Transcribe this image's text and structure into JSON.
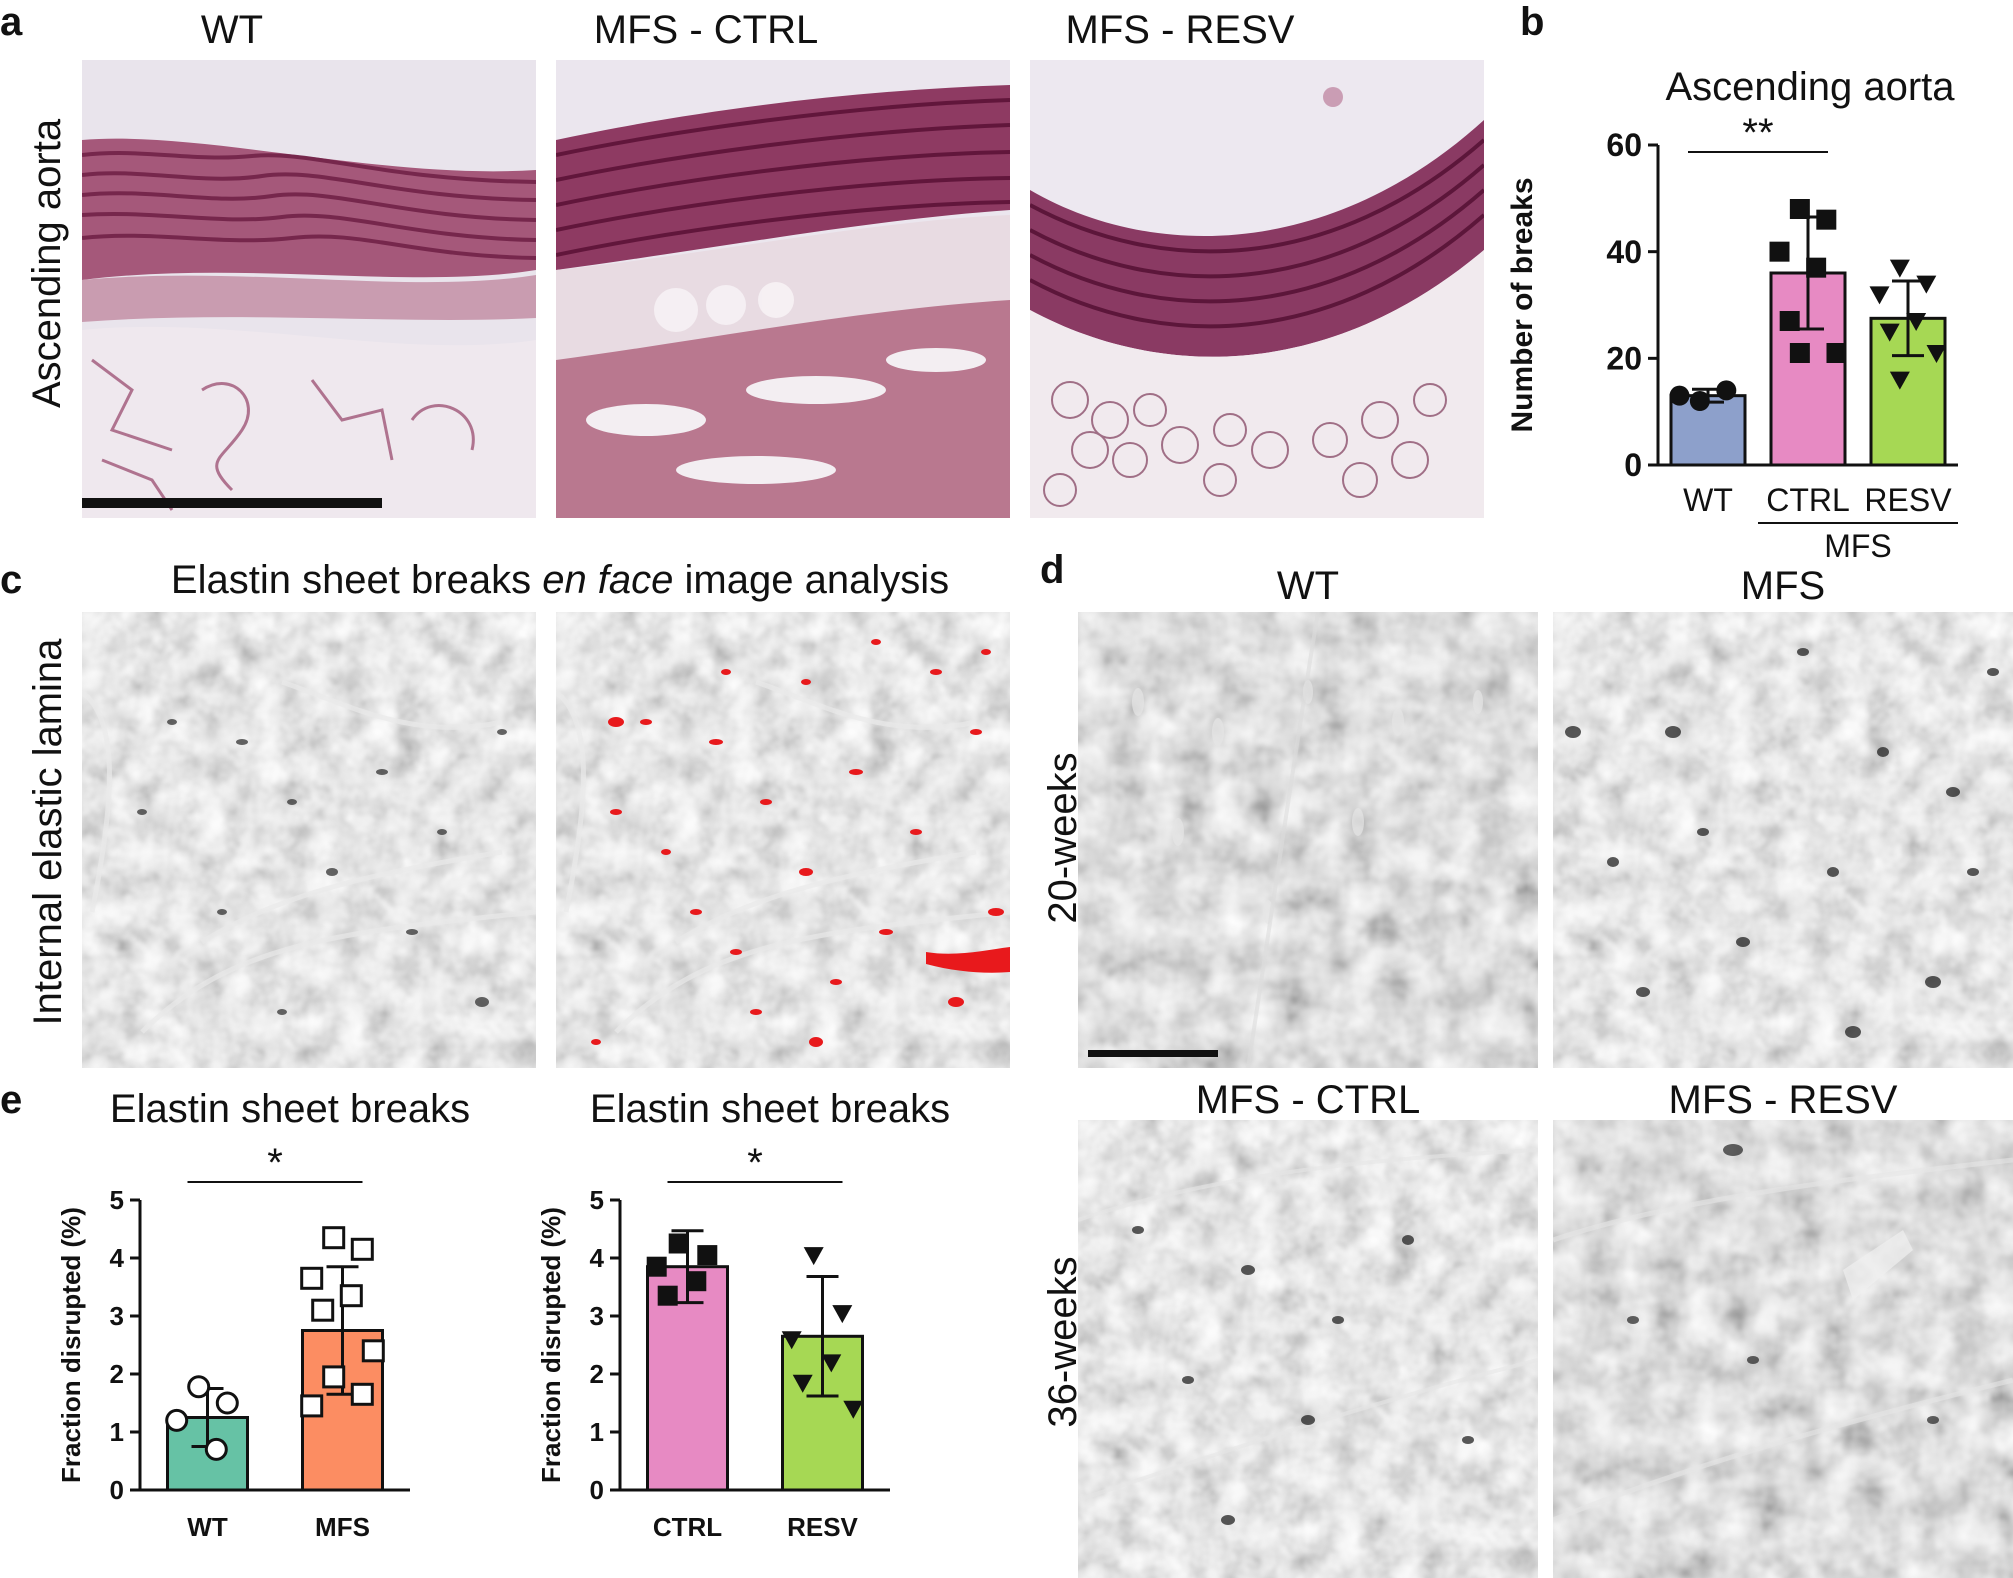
{
  "figure": {
    "panel_a": {
      "label": "a",
      "row_label": "Ascending aorta",
      "columns": [
        "WT",
        "MFS - CTRL",
        "MFS - RESV"
      ]
    },
    "panel_b": {
      "label": "b"
    },
    "panel_c": {
      "label": "c",
      "title_before": "Elastin sheet breaks ",
      "title_italic": "en face",
      "title_after": " image analysis",
      "row_label": "Internal elastic lamina"
    },
    "panel_d": {
      "label": "d",
      "columns_top": [
        "WT",
        "MFS"
      ],
      "columns_bottom": [
        "MFS - CTRL",
        "MFS - RESV"
      ],
      "row_labels": [
        "20-weeks",
        "36-weeks"
      ]
    },
    "panel_e": {
      "label": "e"
    }
  },
  "colors": {
    "wt_blue": "#8da0cb",
    "ctrl_pink": "#e78ac3",
    "resv_green": "#a6d854",
    "wt_teal": "#66c2a5",
    "mfs_orange": "#fc8d62",
    "overlay_red": "#e8191c",
    "stain_purple": "#7a2a52"
  },
  "chart_data": [
    {
      "id": "b",
      "type": "bar",
      "title": "Ascending aorta",
      "ylabel": "Number of breaks",
      "categories": [
        "WT",
        "CTRL",
        "RESV"
      ],
      "group_label": "MFS",
      "values": [
        13,
        36,
        27.5
      ],
      "errors": [
        1.2,
        10.5,
        7
      ],
      "ylim": [
        0,
        60
      ],
      "yticks": [
        "0",
        "20",
        "40",
        "60"
      ],
      "marker_styles": [
        "circle",
        "square",
        "triangle-down"
      ],
      "points": [
        [
          12,
          14,
          13
        ],
        [
          48,
          46,
          40,
          37,
          27,
          21,
          21
        ],
        [
          37,
          34,
          32,
          27,
          25,
          21,
          16
        ]
      ],
      "significance": [
        {
          "from": 0,
          "to": 1,
          "label": "**"
        }
      ]
    },
    {
      "id": "e1",
      "type": "bar",
      "title": "Elastin sheet breaks",
      "ylabel": "Fraction disrupted (%)",
      "categories": [
        "WT",
        "MFS"
      ],
      "values": [
        1.25,
        2.75
      ],
      "errors": [
        0.5,
        1.1
      ],
      "ylim": [
        0,
        5
      ],
      "yticks": [
        "0",
        "1",
        "2",
        "3",
        "4",
        "5"
      ],
      "marker_styles": [
        "open-circle",
        "open-square"
      ],
      "points": [
        [
          1.78,
          1.5,
          1.2,
          0.7
        ],
        [
          4.35,
          4.15,
          3.65,
          3.35,
          3.1,
          2.4,
          1.95,
          1.65,
          1.45
        ]
      ],
      "significance": [
        {
          "from": 0,
          "to": 1,
          "label": "*"
        }
      ]
    },
    {
      "id": "e2",
      "type": "bar",
      "title": "Elastin sheet breaks",
      "ylabel": "Fraction disrupted (%)",
      "categories": [
        "CTRL",
        "RESV"
      ],
      "values": [
        3.85,
        2.65
      ],
      "errors": [
        0.62,
        1.03
      ],
      "ylim": [
        0,
        5
      ],
      "yticks": [
        "0",
        "1",
        "2",
        "3",
        "4",
        "5"
      ],
      "marker_styles": [
        "square",
        "triangle-down"
      ],
      "points": [
        [
          4.25,
          4.05,
          3.85,
          3.6,
          3.35
        ],
        [
          4.05,
          3.05,
          2.6,
          2.2,
          1.85,
          1.4
        ]
      ],
      "significance": [
        {
          "from": 0,
          "to": 1,
          "label": "*"
        }
      ]
    }
  ]
}
